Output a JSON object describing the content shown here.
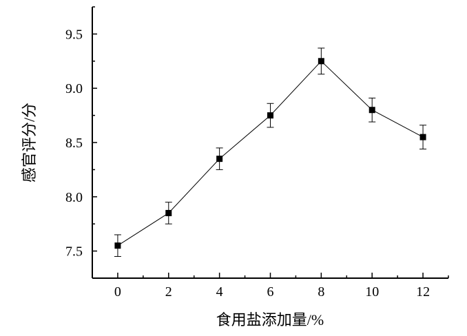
{
  "chart_data": {
    "type": "line",
    "title": "",
    "xlabel": "食用盐添加量/%",
    "ylabel": "感官评分/分",
    "x": [
      0,
      2,
      4,
      6,
      8,
      10,
      12
    ],
    "series": [
      {
        "values": [
          7.55,
          7.85,
          8.35,
          8.75,
          9.25,
          8.8,
          8.55
        ],
        "errors": [
          0.1,
          0.1,
          0.1,
          0.11,
          0.12,
          0.11,
          0.11
        ],
        "marker": "square",
        "color": "#000000"
      }
    ],
    "xlim": [
      -1,
      13
    ],
    "ylim": [
      7.25,
      9.75
    ],
    "xticks": [
      "0",
      "2",
      "4",
      "6",
      "8",
      "10",
      "12"
    ],
    "yticks": [
      "7.5",
      "8.0",
      "8.5",
      "9.0",
      "9.5"
    ],
    "grid": false,
    "legend": "none"
  }
}
